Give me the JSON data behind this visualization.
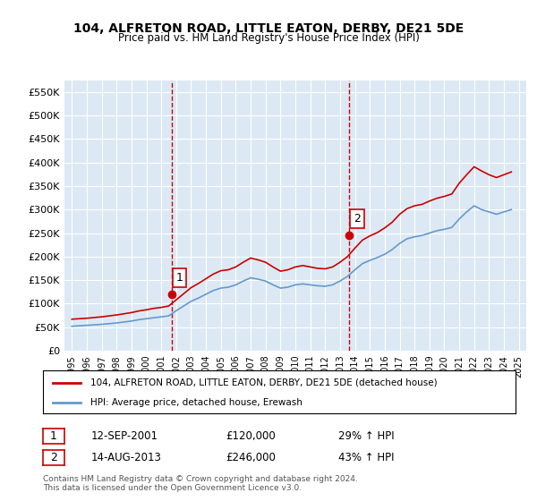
{
  "title": "104, ALFRETON ROAD, LITTLE EATON, DERBY, DE21 5DE",
  "subtitle": "Price paid vs. HM Land Registry's House Price Index (HPI)",
  "ylabel": "",
  "background_color": "#dce9f5",
  "plot_bg_color": "#dce9f5",
  "ylim": [
    0,
    575000
  ],
  "yticks": [
    0,
    50000,
    100000,
    150000,
    200000,
    250000,
    300000,
    350000,
    400000,
    450000,
    500000,
    550000
  ],
  "ytick_labels": [
    "£0",
    "£50K",
    "£100K",
    "£150K",
    "£200K",
    "£250K",
    "£300K",
    "£350K",
    "£400K",
    "£450K",
    "£500K",
    "£550K"
  ],
  "sale1": {
    "date": 2001.7,
    "price": 120000,
    "label": "1",
    "date_str": "12-SEP-2001",
    "pct": "29%"
  },
  "sale2": {
    "date": 2013.6,
    "price": 246000,
    "label": "2",
    "date_str": "14-AUG-2013",
    "pct": "43%"
  },
  "legend_property": "104, ALFRETON ROAD, LITTLE EATON, DERBY, DE21 5DE (detached house)",
  "legend_hpi": "HPI: Average price, detached house, Erewash",
  "footnote": "Contains HM Land Registry data © Crown copyright and database right 2024.\nThis data is licensed under the Open Government Licence v3.0.",
  "property_color": "#cc0000",
  "hpi_color": "#6699cc",
  "hpi_years": [
    1995,
    1995.5,
    1996,
    1996.5,
    1997,
    1997.5,
    1998,
    1998.5,
    1999,
    1999.5,
    2000,
    2000.5,
    2001,
    2001.5,
    2002,
    2002.5,
    2003,
    2003.5,
    2004,
    2004.5,
    2005,
    2005.5,
    2006,
    2006.5,
    2007,
    2007.5,
    2008,
    2008.5,
    2009,
    2009.5,
    2010,
    2010.5,
    2011,
    2011.5,
    2012,
    2012.5,
    2013,
    2013.5,
    2014,
    2014.5,
    2015,
    2015.5,
    2016,
    2016.5,
    2017,
    2017.5,
    2018,
    2018.5,
    2019,
    2019.5,
    2020,
    2020.5,
    2021,
    2021.5,
    2022,
    2022.5,
    2023,
    2023.5,
    2024,
    2024.5
  ],
  "hpi_values": [
    52000,
    53000,
    54000,
    55000,
    56000,
    57500,
    59000,
    61000,
    63000,
    66000,
    68000,
    70000,
    72000,
    74000,
    85000,
    95000,
    105000,
    112000,
    120000,
    128000,
    133000,
    135000,
    140000,
    148000,
    155000,
    152000,
    148000,
    140000,
    133000,
    135000,
    140000,
    142000,
    140000,
    138000,
    137000,
    140000,
    148000,
    158000,
    172000,
    185000,
    192000,
    198000,
    205000,
    215000,
    228000,
    238000,
    242000,
    245000,
    250000,
    255000,
    258000,
    262000,
    280000,
    295000,
    308000,
    300000,
    295000,
    290000,
    295000,
    300000
  ],
  "prop_years": [
    1995,
    1995.5,
    1996,
    1996.5,
    1997,
    1997.5,
    1998,
    1998.5,
    1999,
    1999.5,
    2000,
    2000.5,
    2001,
    2001.5,
    2002,
    2002.5,
    2003,
    2003.5,
    2004,
    2004.5,
    2005,
    2005.5,
    2006,
    2006.5,
    2007,
    2007.5,
    2008,
    2008.5,
    2009,
    2009.5,
    2010,
    2010.5,
    2011,
    2011.5,
    2012,
    2012.5,
    2013,
    2013.5,
    2014,
    2014.5,
    2015,
    2015.5,
    2016,
    2016.5,
    2017,
    2017.5,
    2018,
    2018.5,
    2019,
    2019.5,
    2020,
    2020.5,
    2021,
    2021.5,
    2022,
    2022.5,
    2023,
    2023.5,
    2024,
    2024.5
  ],
  "prop_values": [
    67000,
    68000,
    69000,
    70500,
    72000,
    74000,
    76000,
    78500,
    81000,
    84500,
    87000,
    90000,
    92000,
    95000,
    108000,
    121000,
    134000,
    143000,
    153000,
    163000,
    170000,
    172000,
    178000,
    188000,
    197000,
    193000,
    188000,
    178000,
    169000,
    172000,
    178000,
    181000,
    178000,
    175000,
    174000,
    178000,
    188000,
    200000,
    218000,
    235000,
    244000,
    251000,
    261000,
    273000,
    290000,
    302000,
    308000,
    311000,
    318000,
    324000,
    328000,
    333000,
    356000,
    374000,
    391000,
    382000,
    374000,
    368000,
    374000,
    380000
  ],
  "xlim": [
    1994.5,
    2025.5
  ],
  "xticks": [
    1995,
    1996,
    1997,
    1998,
    1999,
    2000,
    2001,
    2002,
    2003,
    2004,
    2005,
    2006,
    2007,
    2008,
    2009,
    2010,
    2011,
    2012,
    2013,
    2014,
    2015,
    2016,
    2017,
    2018,
    2019,
    2020,
    2021,
    2022,
    2023,
    2024,
    2025
  ]
}
